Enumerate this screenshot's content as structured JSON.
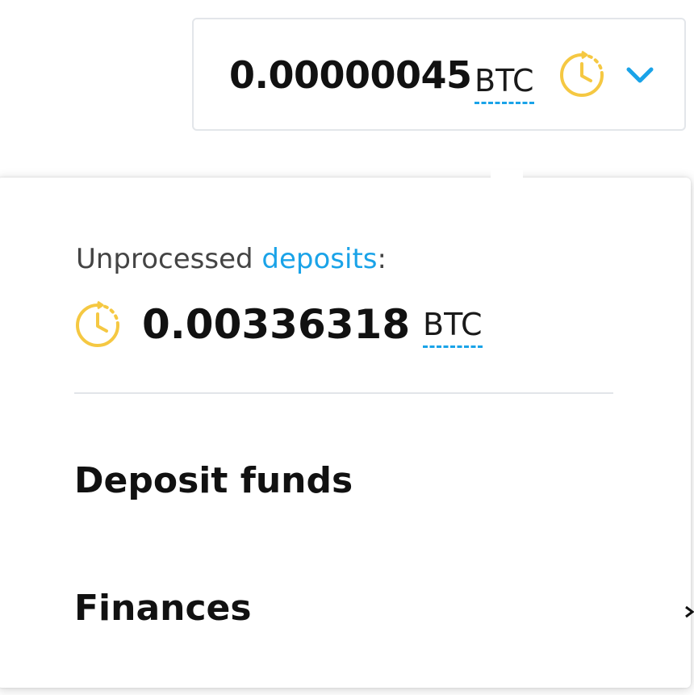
{
  "balance": {
    "amount": "0.00000045",
    "currency": "BTC",
    "pending_icon": "clock-pending-icon",
    "dropdown_icon": "chevron-down-icon"
  },
  "dropdown": {
    "unprocessed_label": "Unprocessed",
    "deposits_link": "deposits",
    "label_suffix": ":",
    "pending_amount": "0.00336318",
    "pending_currency": "BTC",
    "pending_icon": "clock-pending-icon",
    "menu": [
      {
        "label": "Deposit funds"
      },
      {
        "label": "Finances"
      }
    ]
  },
  "colors": {
    "accent": "#1aa3e8",
    "pending": "#f5c842",
    "text": "#111111",
    "border": "#e3e6ea"
  }
}
